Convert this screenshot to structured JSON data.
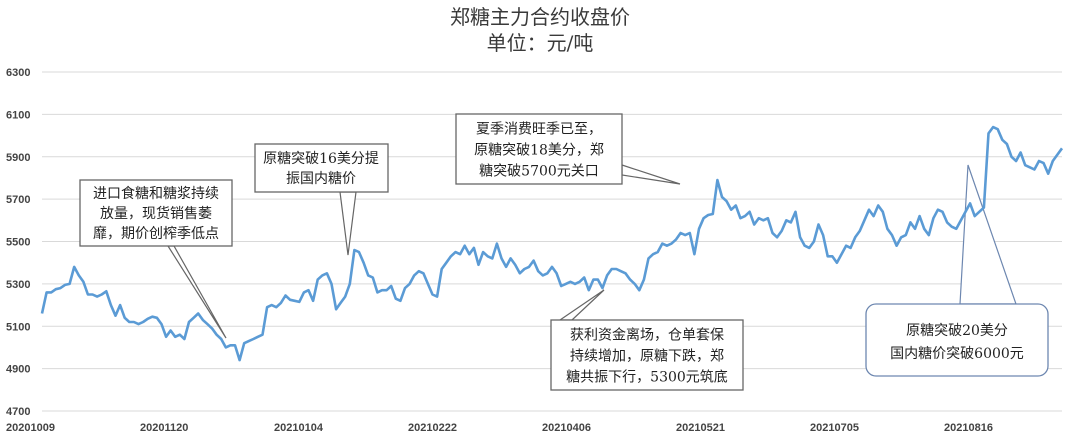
{
  "chart_data": {
    "type": "line",
    "title": "郑糖主力合约收盘价",
    "subtitle": "单位：元/吨",
    "xlabel": "",
    "ylabel": "",
    "ylim": [
      4700,
      6300
    ],
    "yticks": [
      "4700",
      "4900",
      "5100",
      "5300",
      "5500",
      "5700",
      "5900",
      "6100",
      "6300"
    ],
    "xticks": [
      "20201009",
      "20201120",
      "20210104",
      "20210222",
      "20210406",
      "20210521",
      "20210705",
      "20210816"
    ],
    "grid": "horizontal",
    "line_color": "#5b9bd5",
    "series": [
      {
        "values": [
          5160,
          5260,
          5260,
          5275,
          5280,
          5295,
          5300,
          5380,
          5340,
          5310,
          5250,
          5250,
          5240,
          5250,
          5265,
          5200,
          5150,
          5200,
          5140,
          5120,
          5120,
          5110,
          5120,
          5135,
          5145,
          5140,
          5110,
          5050,
          5080,
          5050,
          5060,
          5040,
          5120,
          5140,
          5160,
          5130,
          5110,
          5090,
          5060,
          5040,
          5000,
          5010,
          5010,
          4940,
          5020,
          5030,
          5040,
          5050,
          5060,
          5190,
          5200,
          5190,
          5210,
          5245,
          5225,
          5220,
          5215,
          5260,
          5270,
          5220,
          5320,
          5340,
          5350,
          5300,
          5180,
          5210,
          5240,
          5300,
          5460,
          5450,
          5400,
          5340,
          5330,
          5260,
          5270,
          5270,
          5290,
          5230,
          5220,
          5280,
          5300,
          5340,
          5360,
          5350,
          5300,
          5250,
          5240,
          5370,
          5400,
          5430,
          5450,
          5440,
          5480,
          5440,
          5470,
          5390,
          5450,
          5430,
          5420,
          5490,
          5420,
          5380,
          5420,
          5390,
          5350,
          5370,
          5380,
          5410,
          5360,
          5340,
          5350,
          5380,
          5350,
          5290,
          5300,
          5310,
          5300,
          5310,
          5330,
          5270,
          5320,
          5320,
          5280,
          5340,
          5370,
          5370,
          5360,
          5350,
          5320,
          5300,
          5270,
          5320,
          5420,
          5440,
          5450,
          5490,
          5480,
          5490,
          5510,
          5540,
          5530,
          5540,
          5440,
          5560,
          5610,
          5625,
          5630,
          5790,
          5710,
          5690,
          5650,
          5670,
          5610,
          5620,
          5640,
          5580,
          5610,
          5600,
          5610,
          5540,
          5520,
          5550,
          5600,
          5590,
          5640,
          5520,
          5480,
          5470,
          5500,
          5580,
          5530,
          5430,
          5430,
          5400,
          5440,
          5480,
          5470,
          5520,
          5550,
          5600,
          5650,
          5620,
          5670,
          5640,
          5560,
          5530,
          5480,
          5520,
          5530,
          5590,
          5560,
          5620,
          5560,
          5530,
          5610,
          5650,
          5640,
          5590,
          5570,
          5560,
          5600,
          5640,
          5680,
          5620,
          5640,
          5660,
          6010,
          6040,
          6030,
          5980,
          5960,
          5900,
          5880,
          5920,
          5860,
          5850,
          5840,
          5880,
          5870,
          5820,
          5880,
          5910,
          5940
        ]
      }
    ],
    "annotations": [
      {
        "lines": [
          "进口食糖和糖浆持续",
          "放量，现货销售萎",
          "靡，期价创榨季低点"
        ]
      },
      {
        "lines": [
          "原糖突破16美分提",
          "振国内糖价"
        ]
      },
      {
        "lines": [
          "夏季消费旺季已至，",
          "原糖突破18美分，郑",
          "糖突破5700元关口"
        ]
      },
      {
        "lines": [
          "获利资金离场，仓单套保",
          "持续增加，原糖下跌，郑",
          "糖共振下行，5300元筑底"
        ]
      },
      {
        "lines": [
          "原糖突破20美分",
          "国内糖价突破6000元"
        ]
      }
    ]
  }
}
